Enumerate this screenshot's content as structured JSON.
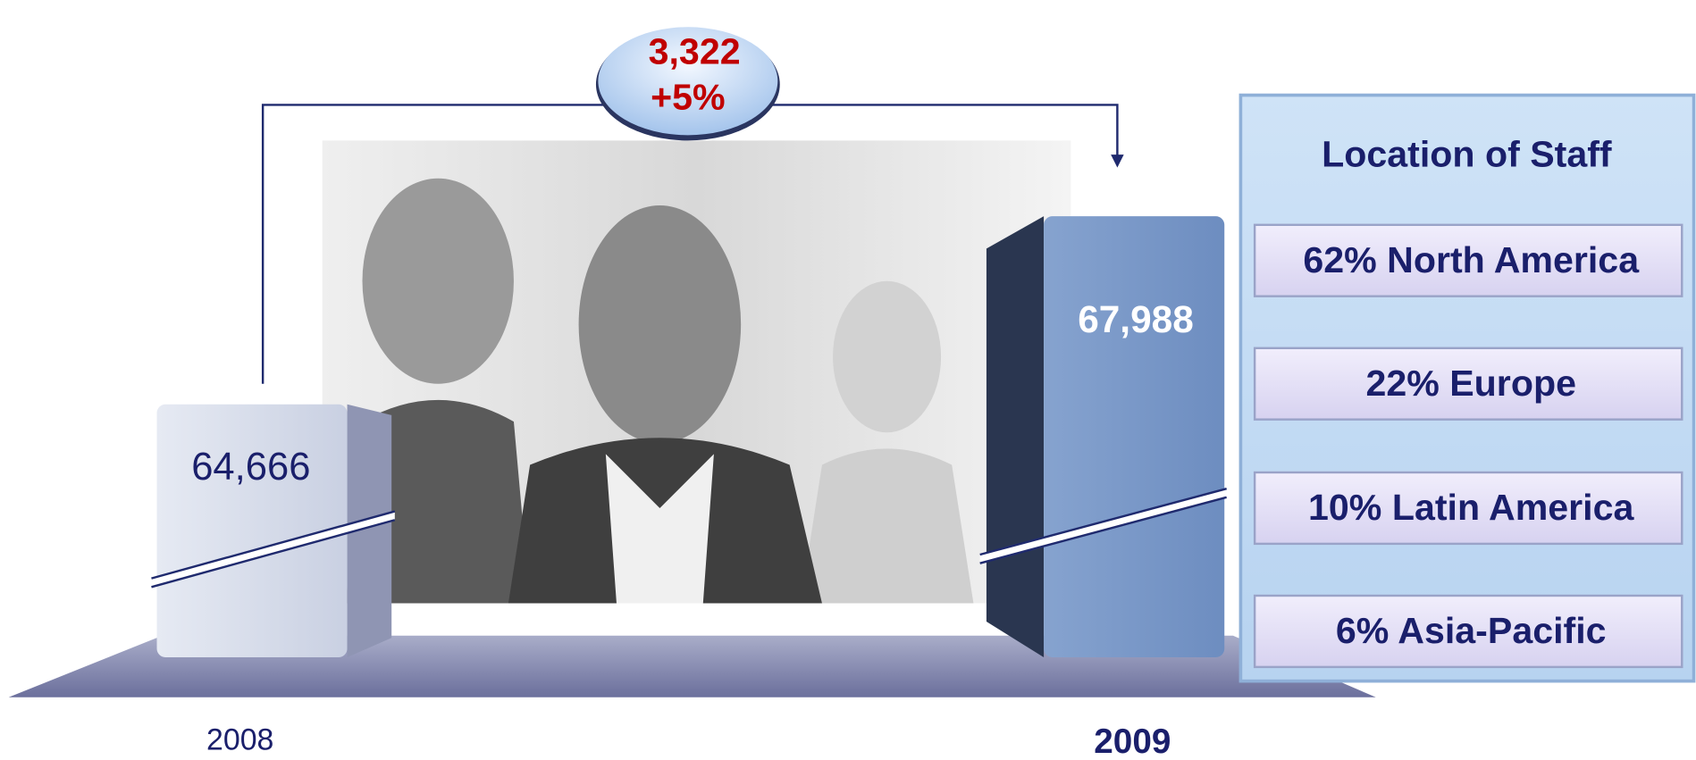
{
  "change": {
    "amount": "3,322",
    "percent": "+5%"
  },
  "years": [
    {
      "label": "2008",
      "staff": "64,666"
    },
    {
      "label": "2009",
      "staff": "67,988"
    }
  ],
  "location": {
    "title": "Location of Staff",
    "items": [
      "62% North America",
      "22% Europe",
      "10% Latin America",
      "6% Asia-Pacific"
    ]
  }
}
